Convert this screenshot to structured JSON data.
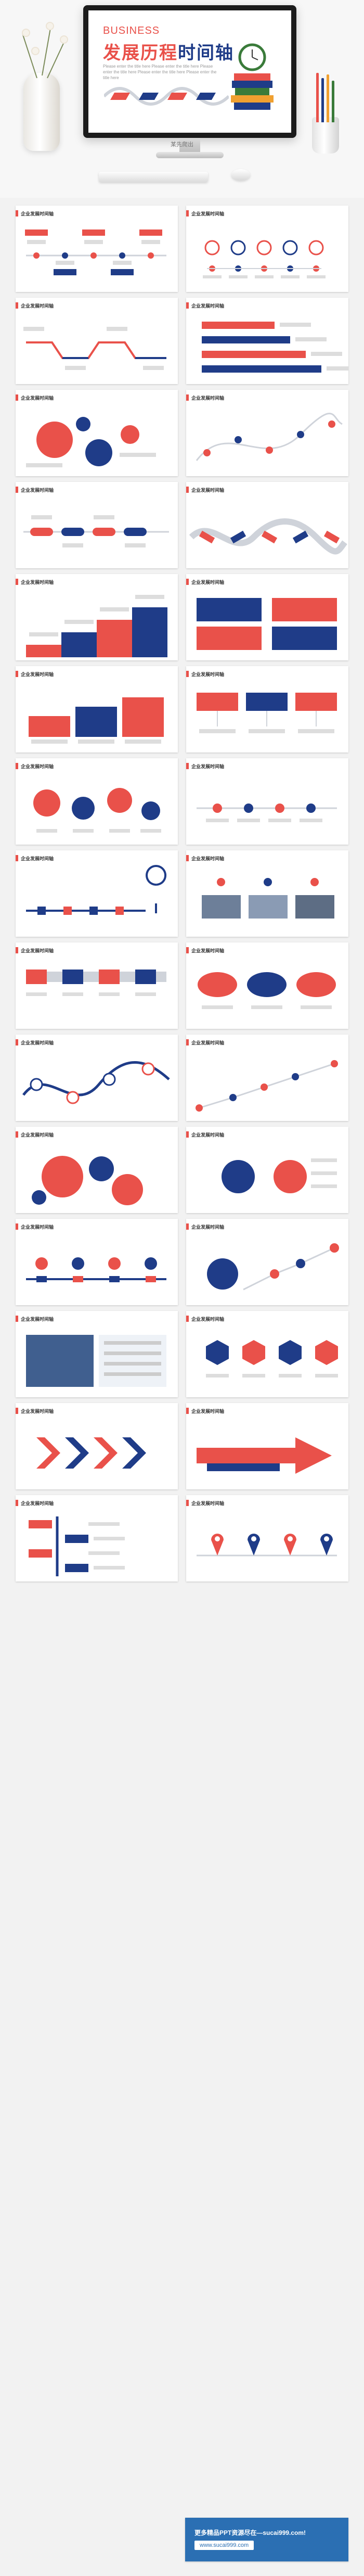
{
  "hero": {
    "business": "BUSINESS",
    "title_red": "发展历程",
    "title_blue": "时间轴",
    "subtitle": "Please enter the title here Please enter the title here Please enter the title here Please enter the title here Please enter the title here",
    "author": "某先爬出"
  },
  "slide_title": "企业发展时间轴",
  "slides_count": 30,
  "colors": {
    "red": "#e9514a",
    "blue": "#1f3c88",
    "grey": "#cfd3da",
    "bg": "#f2f2f2"
  },
  "banner": {
    "line1": "更多精品PPT资源尽在—sucai999.com!",
    "line2": "www.sucai999.com"
  }
}
